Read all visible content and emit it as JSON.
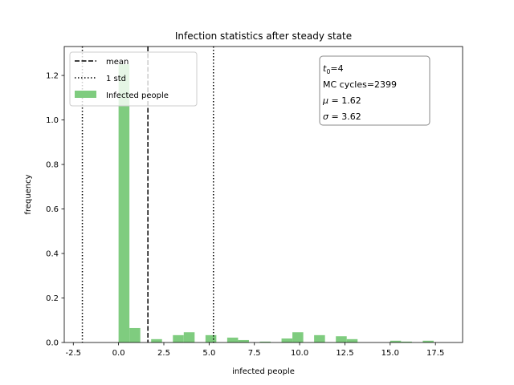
{
  "chart_data": {
    "type": "bar",
    "title": "Infection statistics after steady state",
    "xlabel": "infected people",
    "ylabel": "frequency",
    "xlim": [
      -3.0,
      19.0
    ],
    "ylim": [
      0,
      1.33
    ],
    "xticks": [
      "-2.5",
      "0.0",
      "2.5",
      "5.0",
      "7.5",
      "10.0",
      "12.5",
      "15.0",
      "17.5"
    ],
    "xtick_values": [
      -2.5,
      0.0,
      2.5,
      5.0,
      7.5,
      10.0,
      12.5,
      15.0,
      17.5
    ],
    "yticks": [
      "0.0",
      "0.2",
      "0.4",
      "0.6",
      "0.8",
      "1.0",
      "1.2"
    ],
    "ytick_values": [
      0.0,
      0.2,
      0.4,
      0.6,
      0.8,
      1.0,
      1.2
    ],
    "grid": false,
    "series": [
      {
        "name": "Infected people",
        "color": "#7fcc7f",
        "bin_width": 0.6,
        "bin_starts": [
          0.0,
          0.6,
          1.8,
          3.0,
          3.6,
          4.8,
          6.0,
          6.6,
          7.8,
          9.0,
          9.6,
          10.8,
          12.0,
          12.6,
          15.0,
          15.6,
          16.8
        ],
        "values": [
          1.25,
          0.065,
          0.015,
          0.033,
          0.046,
          0.033,
          0.022,
          0.011,
          0.004,
          0.018,
          0.046,
          0.033,
          0.028,
          0.015,
          0.008,
          0.004,
          0.008
        ]
      }
    ],
    "vlines": [
      {
        "name": "mean",
        "x": 1.62,
        "style": "dashed"
      },
      {
        "name": "1 std",
        "x": -2.0,
        "style": "dotted"
      },
      {
        "name": "1 std",
        "x": 5.24,
        "style": "dotted"
      }
    ],
    "legend": {
      "placement": "top-left",
      "entries": [
        {
          "label": "mean",
          "style": "dashed"
        },
        {
          "label": "1 std",
          "style": "dotted"
        },
        {
          "label": "Infected people",
          "style": "patch"
        }
      ]
    },
    "annotation": {
      "placement": "top-right",
      "t0_symbol": "t",
      "t0_subscript": "0",
      "t0_value": "=4",
      "mc_text": "MC cycles=2399",
      "mu_symbol": "μ",
      "mu_value": " = 1.62",
      "sigma_symbol": "σ",
      "sigma_value": " = 3.62"
    }
  }
}
